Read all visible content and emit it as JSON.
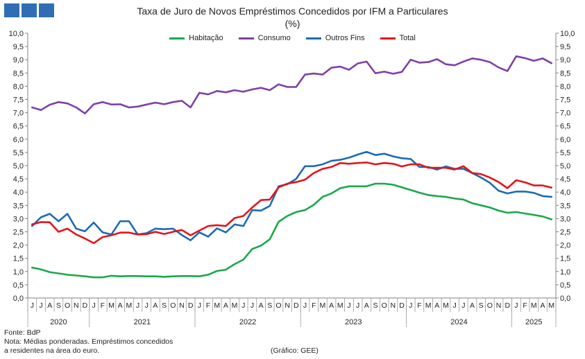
{
  "header": {
    "title": "Taxa de Juro de Novos Empréstimos Concedidos por IFM a Particulares",
    "subtitle": "(%)"
  },
  "notes": {
    "source": "Fonte: BdP",
    "note_line1": "Nota: Médias ponderadas. Empréstimos concedidos",
    "note_line2": "a residentes na área do euro.",
    "credit": "(Gráfico: GEE)"
  },
  "chart_data": {
    "type": "line",
    "ylim": [
      0,
      10
    ],
    "yticks": [
      "0,0",
      "0,5",
      "1,0",
      "1,5",
      "2,0",
      "2,5",
      "3,0",
      "3,5",
      "4,0",
      "4,5",
      "5,0",
      "5,5",
      "6,0",
      "6,5",
      "7,0",
      "7,5",
      "8,0",
      "8,5",
      "9,0",
      "9,5",
      "10,0"
    ],
    "grid": false,
    "legend_position": "top-center",
    "month_labels": [
      "J",
      "J",
      "A",
      "S",
      "O",
      "N",
      "D",
      "J",
      "F",
      "M",
      "A",
      "M",
      "J",
      "J",
      "A",
      "S",
      "O",
      "N",
      "D",
      "J",
      "F",
      "M",
      "A",
      "M",
      "J",
      "J",
      "A",
      "S",
      "O",
      "N",
      "D",
      "J",
      "F",
      "M",
      "A",
      "M",
      "J",
      "J",
      "A",
      "S",
      "O",
      "N",
      "D",
      "J",
      "F",
      "M",
      "A",
      "M",
      "J",
      "J",
      "A",
      "S",
      "O",
      "N",
      "D",
      "J",
      "F",
      "M",
      "A",
      "M"
    ],
    "years": [
      {
        "label": "2020",
        "start": 0,
        "count": 7
      },
      {
        "label": "2021",
        "start": 7,
        "count": 12
      },
      {
        "label": "2022",
        "start": 19,
        "count": 12
      },
      {
        "label": "2023",
        "start": 31,
        "count": 12
      },
      {
        "label": "2024",
        "start": 43,
        "count": 12
      },
      {
        "label": "2025",
        "start": 55,
        "count": 5
      }
    ],
    "series": [
      {
        "name": "Habitação",
        "color": "#1aa84a",
        "values": [
          1.15,
          1.08,
          0.98,
          0.93,
          0.88,
          0.85,
          0.82,
          0.78,
          0.78,
          0.84,
          0.82,
          0.83,
          0.83,
          0.82,
          0.82,
          0.8,
          0.82,
          0.83,
          0.83,
          0.82,
          0.88,
          1.02,
          1.07,
          1.28,
          1.45,
          1.85,
          1.98,
          2.22,
          2.88,
          3.1,
          3.25,
          3.32,
          3.52,
          3.82,
          3.95,
          4.15,
          4.22,
          4.22,
          4.22,
          4.32,
          4.32,
          4.28,
          4.18,
          4.08,
          3.98,
          3.89,
          3.85,
          3.82,
          3.76,
          3.72,
          3.58,
          3.5,
          3.42,
          3.3,
          3.22,
          3.25,
          3.19,
          3.14,
          3.08,
          2.97
        ]
      },
      {
        "name": "Consumo",
        "color": "#7f3fa8",
        "values": [
          7.2,
          7.1,
          7.3,
          7.4,
          7.35,
          7.2,
          6.97,
          7.32,
          7.4,
          7.31,
          7.32,
          7.2,
          7.23,
          7.31,
          7.38,
          7.32,
          7.4,
          7.45,
          7.2,
          7.75,
          7.69,
          7.82,
          7.77,
          7.85,
          7.79,
          7.88,
          7.94,
          7.85,
          8.07,
          7.97,
          7.97,
          8.44,
          8.48,
          8.44,
          8.7,
          8.74,
          8.62,
          8.86,
          8.93,
          8.49,
          8.55,
          8.47,
          8.54,
          9.0,
          8.89,
          8.91,
          9.02,
          8.83,
          8.79,
          8.93,
          9.05,
          9.0,
          8.91,
          8.71,
          8.57,
          9.13,
          9.06,
          8.96,
          9.05,
          8.87
        ]
      },
      {
        "name": "Outros Fins",
        "color": "#1a6bb5",
        "values": [
          2.72,
          3.05,
          3.18,
          2.9,
          3.18,
          2.62,
          2.52,
          2.85,
          2.48,
          2.4,
          2.9,
          2.9,
          2.4,
          2.45,
          2.62,
          2.6,
          2.62,
          2.38,
          2.18,
          2.48,
          2.32,
          2.63,
          2.48,
          2.78,
          2.72,
          3.32,
          3.3,
          3.48,
          4.22,
          4.3,
          4.5,
          4.98,
          4.98,
          5.05,
          5.18,
          5.22,
          5.3,
          5.42,
          5.52,
          5.4,
          5.45,
          5.35,
          5.28,
          5.25,
          4.95,
          4.95,
          4.85,
          4.97,
          4.88,
          4.88,
          4.72,
          4.55,
          4.35,
          4.05,
          3.95,
          4.02,
          4.02,
          3.97,
          3.85,
          3.82
        ]
      },
      {
        "name": "Total",
        "color": "#e3141b",
        "values": [
          2.78,
          2.87,
          2.86,
          2.5,
          2.62,
          2.4,
          2.25,
          2.07,
          2.3,
          2.37,
          2.47,
          2.47,
          2.4,
          2.41,
          2.5,
          2.42,
          2.5,
          2.57,
          2.37,
          2.55,
          2.72,
          2.75,
          2.72,
          3.02,
          3.1,
          3.42,
          3.7,
          3.72,
          4.18,
          4.32,
          4.38,
          4.47,
          4.72,
          4.88,
          4.95,
          5.1,
          5.07,
          5.1,
          5.12,
          5.05,
          5.1,
          5.07,
          4.97,
          5.05,
          5.05,
          4.92,
          4.92,
          4.92,
          4.85,
          4.98,
          4.72,
          4.68,
          4.55,
          4.38,
          4.15,
          4.45,
          4.37,
          4.25,
          4.25,
          4.17
        ]
      }
    ]
  }
}
